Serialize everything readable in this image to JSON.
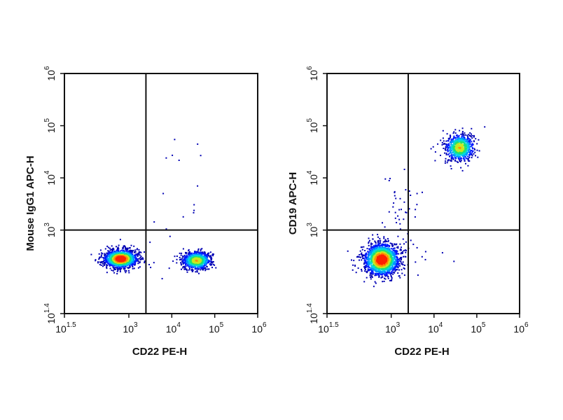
{
  "colors": {
    "axis": "#111111",
    "density_scale": [
      "#0000b3",
      "#0018ff",
      "#0090ff",
      "#00d8e0",
      "#20e070",
      "#c8e820",
      "#ff9000",
      "#ff2000"
    ]
  },
  "chart_data": [
    {
      "type": "scatter",
      "subtype": "flow-cytometry-density-dot-plot",
      "title": "",
      "xlabel": "CD22 PE-H",
      "ylabel": "Mouse IgG1 APC-H",
      "x_scale": "log10",
      "y_scale": "log10",
      "xlim": [
        31.6,
        1000000
      ],
      "ylim": [
        25.1,
        1000000
      ],
      "x_ticks": [
        {
          "base": "10",
          "exp": "1.5"
        },
        {
          "base": "10",
          "exp": "3"
        },
        {
          "base": "10",
          "exp": "4"
        },
        {
          "base": "10",
          "exp": "5"
        },
        {
          "base": "10",
          "exp": "6"
        }
      ],
      "y_ticks": [
        {
          "base": "10",
          "exp": "1.4"
        },
        {
          "base": "10",
          "exp": "3"
        },
        {
          "base": "10",
          "exp": "4"
        },
        {
          "base": "10",
          "exp": "5"
        },
        {
          "base": "10",
          "exp": "6"
        }
      ],
      "gate": {
        "x": 2500,
        "y": 1000
      },
      "populations": [
        {
          "center": [
            650,
            280
          ],
          "spread_log": [
            0.19,
            0.085
          ],
          "count": 1400,
          "peak": "high"
        },
        {
          "center": [
            38000,
            260
          ],
          "spread_log": [
            0.17,
            0.085
          ],
          "count": 850,
          "peak": "medium"
        },
        {
          "center": [
            15000,
            6000
          ],
          "spread_log": [
            0.45,
            0.85
          ],
          "count": 22,
          "peak": "sparse"
        }
      ]
    },
    {
      "type": "scatter",
      "subtype": "flow-cytometry-density-dot-plot",
      "title": "",
      "xlabel": "CD22 PE-H",
      "ylabel": "CD19 APC-H",
      "x_scale": "log10",
      "y_scale": "log10",
      "xlim": [
        31.6,
        1000000
      ],
      "ylim": [
        25.1,
        1000000
      ],
      "x_ticks": [
        {
          "base": "10",
          "exp": "1.5"
        },
        {
          "base": "10",
          "exp": "3"
        },
        {
          "base": "10",
          "exp": "4"
        },
        {
          "base": "10",
          "exp": "5"
        },
        {
          "base": "10",
          "exp": "6"
        }
      ],
      "y_ticks": [
        {
          "base": "10",
          "exp": "1.4"
        },
        {
          "base": "10",
          "exp": "3"
        },
        {
          "base": "10",
          "exp": "4"
        },
        {
          "base": "10",
          "exp": "5"
        },
        {
          "base": "10",
          "exp": "6"
        }
      ],
      "gate": {
        "x": 2500,
        "y": 1000
      },
      "populations": [
        {
          "center": [
            600,
            270
          ],
          "spread_log": [
            0.2,
            0.15
          ],
          "count": 1800,
          "peak": "high"
        },
        {
          "center": [
            40000,
            38000
          ],
          "spread_log": [
            0.17,
            0.13
          ],
          "count": 750,
          "peak": "medium"
        },
        {
          "center": [
            1500,
            2000
          ],
          "spread_log": [
            0.25,
            0.4
          ],
          "count": 45,
          "peak": "sparse"
        },
        {
          "center": [
            10000,
            300
          ],
          "spread_log": [
            0.35,
            0.2
          ],
          "count": 8,
          "peak": "sparse"
        }
      ]
    }
  ]
}
